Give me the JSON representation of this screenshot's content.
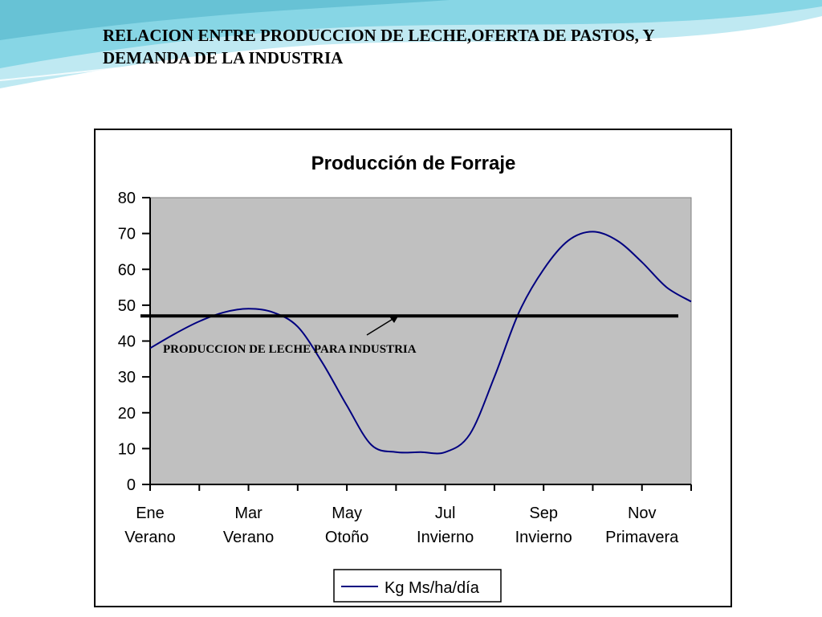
{
  "slide": {
    "title_line1": "RELACION ENTRE PRODUCCION DE LECHE,OFERTA DE PASTOS, Y",
    "title_line2": "DEMANDA DE LA INDUSTRIA"
  },
  "colors": {
    "banner_light": "#bfe9f2",
    "banner_mid": "#6fcde0",
    "banner_dark": "#2a9fb8",
    "plot_area": "#c0c0c0",
    "series_line": "#000080",
    "industry_line": "#000000"
  },
  "chart_data": {
    "type": "line",
    "title": "Producción de Forraje",
    "ylim": [
      0,
      80
    ],
    "yticks": [
      0,
      10,
      20,
      30,
      40,
      50,
      60,
      70,
      80
    ],
    "grid": false,
    "legend_position": "bottom",
    "categories": [
      {
        "line1": "Ene",
        "line2": "Verano"
      },
      {
        "line1": "Mar",
        "line2": "Verano"
      },
      {
        "line1": "May",
        "line2": "Otoño"
      },
      {
        "line1": "Jul",
        "line2": "Invierno"
      },
      {
        "line1": "Sep",
        "line2": "Invierno"
      },
      {
        "line1": "Nov",
        "line2": "Primavera"
      }
    ],
    "series": [
      {
        "name": "Kg Ms/ha/día",
        "x": [
          0,
          0.5,
          1,
          1.5,
          2,
          2.5,
          3,
          3.5,
          4,
          4.5,
          5,
          5.5,
          6,
          6.5,
          7,
          7.5,
          8,
          8.5,
          9,
          9.5,
          10,
          10.5,
          11
        ],
        "values": [
          38,
          42,
          45.5,
          48,
          49,
          48,
          44,
          34,
          22,
          11,
          9,
          9,
          9,
          14,
          30,
          48,
          60,
          68,
          70.5,
          68,
          62,
          55,
          51
        ]
      }
    ],
    "reference_line": {
      "value": 47,
      "label": "PRODUCCION DE LECHE PARA INDUSTRIA"
    }
  }
}
